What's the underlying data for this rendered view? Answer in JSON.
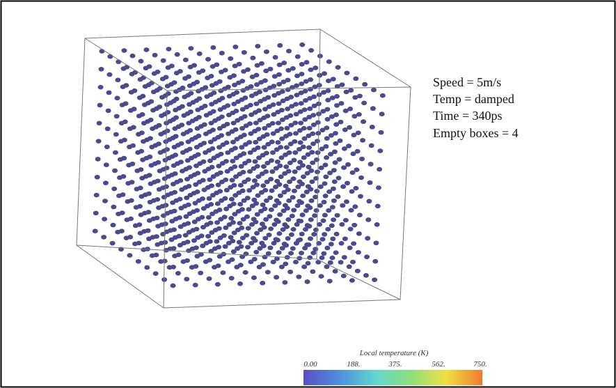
{
  "annotations": [
    "Speed = 5m/s",
    "Temp = damped",
    "Time = 340ps",
    "Empty boxes = 4"
  ],
  "colorbar": {
    "title": "Local temperature (K)",
    "labels": [
      "0.00",
      "188.",
      "375.",
      "562.",
      "750."
    ]
  }
}
